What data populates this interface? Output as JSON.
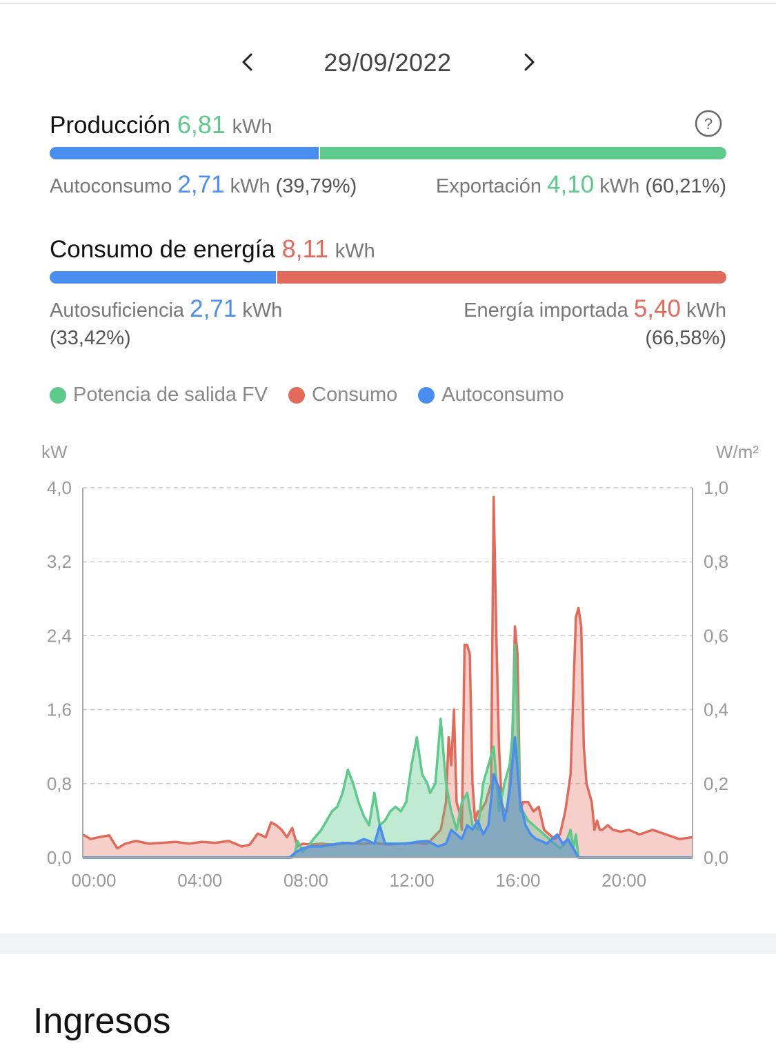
{
  "date_nav": {
    "date": "29/09/2022",
    "prev_icon": "chevron-left-icon",
    "next_icon": "chevron-right-icon"
  },
  "produccion": {
    "label": "Producción",
    "value": "6,81",
    "unit": "kWh",
    "help_icon": "question-icon",
    "autoconsumo": {
      "label": "Autoconsumo",
      "value": "2,71",
      "unit": "kWh",
      "pct": "(39,79%)",
      "fraction": 0.3979
    },
    "exportacion": {
      "label": "Exportación",
      "value": "4,10",
      "unit": "kWh",
      "pct": "(60,21%)",
      "fraction": 0.6021
    }
  },
  "consumo": {
    "label": "Consumo de energía",
    "value": "8,11",
    "unit": "kWh",
    "autosuficiencia": {
      "label": "Autosuficiencia",
      "value": "2,71",
      "unit": "kWh",
      "pct": "(33,42%)",
      "fraction": 0.3342
    },
    "importada": {
      "label": "Energía importada",
      "value": "5,40",
      "unit": "kWh",
      "pct": "(66,58%)",
      "fraction": 0.6658
    }
  },
  "colors": {
    "green": "#5dc98b",
    "red": "#e26a5a",
    "blue": "#4a8df0"
  },
  "legend": [
    {
      "label": "Potencia de salida FV",
      "color": "#5dc98b"
    },
    {
      "label": "Consumo",
      "color": "#e26a5a"
    },
    {
      "label": "Autoconsumo",
      "color": "#4a8df0"
    }
  ],
  "chart_data": {
    "type": "area",
    "left_unit": "kW",
    "right_unit": "W/m²",
    "ylim": [
      0,
      4.0
    ],
    "y2lim": [
      0,
      1.0
    ],
    "yticks": [
      "0,0",
      "0,8",
      "1,6",
      "2,4",
      "3,2",
      "4,0"
    ],
    "y2ticks": [
      "0,0",
      "0,2",
      "0,4",
      "0,6",
      "0,8",
      "1,0"
    ],
    "xlim": [
      0,
      23
    ],
    "xticks": [
      {
        "x": 0,
        "label": "00:00"
      },
      {
        "x": 4,
        "label": "04:00"
      },
      {
        "x": 8,
        "label": "08:00"
      },
      {
        "x": 12,
        "label": "12:00"
      },
      {
        "x": 16,
        "label": "16:00"
      },
      {
        "x": 20,
        "label": "20:00"
      }
    ],
    "grid": true,
    "series": [
      {
        "name": "Consumo",
        "color": "#e26a5a",
        "x": [
          0,
          0.3,
          0.6,
          1.0,
          1.3,
          1.6,
          2.0,
          2.5,
          3.0,
          3.5,
          4.0,
          4.5,
          5.0,
          5.5,
          6.0,
          6.3,
          6.6,
          6.9,
          7.1,
          7.3,
          7.5,
          7.7,
          7.9,
          8.1,
          8.3,
          8.6,
          9.0,
          9.5,
          10.0,
          10.5,
          11.0,
          11.5,
          12.0,
          12.5,
          13.0,
          13.5,
          13.7,
          13.8,
          13.9,
          14.0,
          14.1,
          14.2,
          14.3,
          14.4,
          14.5,
          14.6,
          14.7,
          14.8,
          14.9,
          15.0,
          15.2,
          15.4,
          15.5,
          15.6,
          15.7,
          15.8,
          15.9,
          16.0,
          16.1,
          16.2,
          16.3,
          16.4,
          16.5,
          16.6,
          16.8,
          17.0,
          17.2,
          17.4,
          17.6,
          17.8,
          18.0,
          18.2,
          18.4,
          18.6,
          18.7,
          18.8,
          18.9,
          19.0,
          19.1,
          19.2,
          19.3,
          19.4,
          19.5,
          19.6,
          19.8,
          20.0,
          20.3,
          20.6,
          21.0,
          21.5,
          22.0,
          22.5,
          23.0
        ],
        "values": [
          0.25,
          0.2,
          0.22,
          0.24,
          0.1,
          0.15,
          0.18,
          0.15,
          0.16,
          0.17,
          0.15,
          0.17,
          0.16,
          0.18,
          0.12,
          0.14,
          0.26,
          0.22,
          0.38,
          0.35,
          0.3,
          0.22,
          0.32,
          0.12,
          0.15,
          0.14,
          0.15,
          0.14,
          0.16,
          0.15,
          0.16,
          0.14,
          0.15,
          0.16,
          0.15,
          0.3,
          0.6,
          1.3,
          1.0,
          1.6,
          0.6,
          0.5,
          0.3,
          2.3,
          2.3,
          2.2,
          0.8,
          0.4,
          0.5,
          0.5,
          0.6,
          0.8,
          3.9,
          2.4,
          1.2,
          0.6,
          0.5,
          0.5,
          0.8,
          1.2,
          2.5,
          2.2,
          0.5,
          0.6,
          0.6,
          0.5,
          0.55,
          0.3,
          0.25,
          0.2,
          0.25,
          0.5,
          0.9,
          2.6,
          2.7,
          2.5,
          1.2,
          0.8,
          0.7,
          0.6,
          0.3,
          0.4,
          0.3,
          0.3,
          0.35,
          0.3,
          0.28,
          0.3,
          0.25,
          0.3,
          0.25,
          0.2,
          0.22
        ]
      },
      {
        "name": "Potencia de salida FV",
        "color": "#5dc98b",
        "x": [
          0,
          7.9,
          8.0,
          8.1,
          8.3,
          8.5,
          8.7,
          9.0,
          9.2,
          9.4,
          9.6,
          9.8,
          10.0,
          10.2,
          10.4,
          10.6,
          10.8,
          11.0,
          11.2,
          11.4,
          11.6,
          11.8,
          12.0,
          12.2,
          12.4,
          12.6,
          12.8,
          13.0,
          13.1,
          13.3,
          13.5,
          13.7,
          13.9,
          14.1,
          14.3,
          14.5,
          14.7,
          14.9,
          15.1,
          15.3,
          15.5,
          15.7,
          15.9,
          16.1,
          16.2,
          16.3,
          16.4,
          16.5,
          16.6,
          16.8,
          17.0,
          17.2,
          17.4,
          17.6,
          17.8,
          18.0,
          18.2,
          18.4,
          18.5,
          18.6,
          18.7,
          23.0
        ],
        "values": [
          0,
          0,
          0.05,
          0.18,
          0.06,
          0.12,
          0.2,
          0.3,
          0.4,
          0.5,
          0.55,
          0.7,
          0.95,
          0.8,
          0.6,
          0.45,
          0.35,
          0.7,
          0.35,
          0.4,
          0.5,
          0.55,
          0.5,
          0.6,
          1.0,
          1.3,
          0.9,
          0.8,
          0.7,
          0.8,
          1.5,
          0.8,
          0.5,
          0.3,
          0.6,
          0.7,
          0.35,
          0.3,
          0.8,
          1.0,
          1.2,
          0.5,
          0.8,
          1.0,
          1.3,
          2.3,
          1.5,
          0.5,
          0.5,
          0.4,
          0.35,
          0.3,
          0.25,
          0.2,
          0.15,
          0.1,
          0.15,
          0.3,
          0.1,
          0.25,
          0,
          0
        ]
      },
      {
        "name": "Autoconsumo",
        "color": "#4a8df0",
        "x": [
          0,
          7.8,
          8.0,
          8.3,
          8.6,
          9.0,
          9.4,
          9.8,
          10.2,
          10.6,
          10.8,
          11.0,
          11.2,
          11.4,
          11.8,
          12.2,
          12.6,
          13.0,
          13.4,
          13.7,
          13.9,
          14.1,
          14.3,
          14.5,
          14.7,
          14.9,
          15.1,
          15.3,
          15.5,
          15.7,
          15.9,
          16.1,
          16.3,
          16.5,
          16.7,
          16.9,
          17.1,
          17.3,
          17.5,
          17.7,
          17.9,
          18.1,
          18.3,
          18.5,
          18.7,
          23.0
        ],
        "values": [
          0,
          0,
          0.05,
          0.1,
          0.12,
          0.12,
          0.14,
          0.16,
          0.15,
          0.2,
          0.18,
          0.15,
          0.35,
          0.15,
          0.15,
          0.15,
          0.17,
          0.18,
          0.12,
          0.15,
          0.3,
          0.25,
          0.2,
          0.35,
          0.3,
          0.4,
          0.25,
          0.35,
          0.9,
          0.75,
          0.4,
          0.7,
          1.3,
          0.6,
          0.35,
          0.25,
          0.2,
          0.18,
          0.15,
          0.2,
          0.25,
          0.15,
          0.2,
          0.1,
          0,
          0
        ]
      }
    ]
  },
  "ingresos": {
    "title": "Ingresos"
  }
}
